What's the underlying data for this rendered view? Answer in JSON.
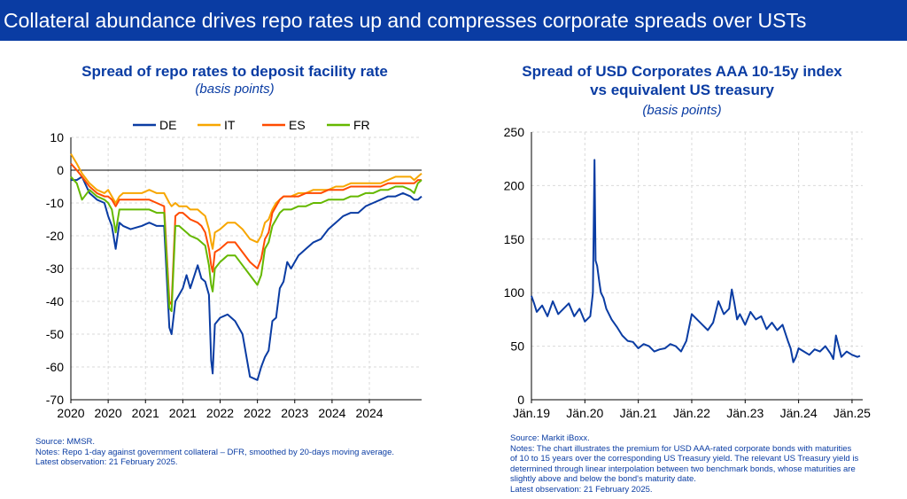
{
  "banner": {
    "title": "Collateral abundance drives repo rates up and compresses corporate spreads over USTs"
  },
  "left_chart": {
    "title": "Spread of repo rates to deposit facility rate",
    "subtitle": "(basis points)",
    "notes": {
      "source": "Source: MMSR.",
      "notes": "Notes: Repo 1-day against government collateral – DFR, smoothed by 20-days moving average.",
      "latest": "Latest observation: 21 February 2025."
    }
  },
  "right_chart": {
    "title_line1": "Spread of USD Corporates AAA 10-15y index",
    "title_line2": "vs equivalent US treasury",
    "subtitle": "(basis points)",
    "notes": {
      "source": "Source: Markit iBoxx.",
      "notes_lines": [
        "Notes: The chart illustrates the premium for USD AAA-rated corporate bonds with maturities",
        "of 10 to 15 years over the corresponding US Treasury yield. The relevant US Treasury yield is",
        "determined through linear interpolation between two benchmark bonds, whose maturities are",
        "slightly above and below the bond's maturity date."
      ],
      "latest": "Latest observation: 21 February 2025."
    }
  },
  "chart_data": [
    {
      "type": "line",
      "title": "Spread of repo rates to deposit facility rate",
      "subtitle": "(basis points)",
      "ylim": [
        -70,
        10
      ],
      "xlim": [
        2020.0,
        2024.7
      ],
      "y_ticks": [
        10,
        0,
        -10,
        -20,
        -30,
        -40,
        -50,
        -60,
        -70
      ],
      "x_ticks": [
        {
          "label": "2020",
          "x": 2020.0
        },
        {
          "label": "2020",
          "x": 2020.5
        },
        {
          "label": "2021",
          "x": 2021.0
        },
        {
          "label": "2021",
          "x": 2021.5
        },
        {
          "label": "2022",
          "x": 2022.0
        },
        {
          "label": "2022",
          "x": 2022.5
        },
        {
          "label": "2023",
          "x": 2023.0
        },
        {
          "label": "2024",
          "x": 2023.5
        },
        {
          "label": "2024",
          "x": 2024.0
        }
      ],
      "grid": true,
      "legend_position": "top",
      "series": [
        {
          "name": "DE",
          "color": "#0a3ca3",
          "x": [
            2020.0,
            2020.08,
            2020.15,
            2020.25,
            2020.35,
            2020.45,
            2020.5,
            2020.55,
            2020.6,
            2020.65,
            2020.7,
            2020.8,
            2020.95,
            2021.05,
            2021.15,
            2021.25,
            2021.32,
            2021.35,
            2021.4,
            2021.45,
            2021.5,
            2021.55,
            2021.6,
            2021.7,
            2021.75,
            2021.8,
            2021.85,
            2021.88,
            2021.9,
            2021.93,
            2022.0,
            2022.1,
            2022.2,
            2022.3,
            2022.4,
            2022.5,
            2022.55,
            2022.6,
            2022.65,
            2022.7,
            2022.75,
            2022.8,
            2022.85,
            2022.9,
            2022.95,
            2023.05,
            2023.15,
            2023.25,
            2023.35,
            2023.45,
            2023.55,
            2023.65,
            2023.75,
            2023.85,
            2023.95,
            2024.05,
            2024.15,
            2024.25,
            2024.35,
            2024.45,
            2024.55,
            2024.6,
            2024.65,
            2024.7
          ],
          "y": [
            -3,
            -3,
            -2,
            -7,
            -9,
            -10,
            -14,
            -17,
            -24,
            -16,
            -17,
            -18,
            -17,
            -16,
            -17,
            -17,
            -48,
            -50,
            -40,
            -38,
            -36,
            -32,
            -36,
            -29,
            -33,
            -34,
            -38,
            -58,
            -62,
            -47,
            -45,
            -44,
            -46,
            -50,
            -63,
            -64,
            -60,
            -57,
            -55,
            -46,
            -45,
            -36,
            -34,
            -28,
            -30,
            -26,
            -24,
            -22,
            -21,
            -18,
            -16,
            -14,
            -13,
            -13,
            -11,
            -10,
            -9,
            -8,
            -8,
            -7,
            -8,
            -9,
            -9,
            -8
          ]
        },
        {
          "name": "IT",
          "color": "#f7a600",
          "x": [
            2020.0,
            2020.08,
            2020.15,
            2020.25,
            2020.35,
            2020.45,
            2020.5,
            2020.55,
            2020.6,
            2020.65,
            2020.7,
            2020.8,
            2020.95,
            2021.05,
            2021.15,
            2021.25,
            2021.32,
            2021.35,
            2021.4,
            2021.45,
            2021.5,
            2021.55,
            2021.6,
            2021.7,
            2021.75,
            2021.8,
            2021.85,
            2021.88,
            2021.9,
            2021.93,
            2022.0,
            2022.1,
            2022.2,
            2022.3,
            2022.4,
            2022.5,
            2022.55,
            2022.6,
            2022.65,
            2022.7,
            2022.75,
            2022.8,
            2022.85,
            2022.9,
            2022.95,
            2023.05,
            2023.15,
            2023.25,
            2023.35,
            2023.45,
            2023.55,
            2023.65,
            2023.75,
            2023.85,
            2023.95,
            2024.05,
            2024.15,
            2024.25,
            2024.35,
            2024.45,
            2024.55,
            2024.6,
            2024.65,
            2024.7
          ],
          "y": [
            5,
            2,
            -1,
            -4,
            -6,
            -7,
            -6,
            -8,
            -10,
            -8,
            -7,
            -7,
            -7,
            -6,
            -7,
            -7,
            -10,
            -11,
            -10,
            -11,
            -11,
            -11,
            -12,
            -12,
            -13,
            -14,
            -18,
            -22,
            -24,
            -19,
            -18,
            -16,
            -16,
            -18,
            -21,
            -22,
            -20,
            -16,
            -15,
            -12,
            -10,
            -9,
            -8,
            -8,
            -8,
            -7,
            -7,
            -6,
            -6,
            -6,
            -5,
            -5,
            -4,
            -4,
            -4,
            -4,
            -4,
            -3,
            -2,
            -2,
            -2,
            -3,
            -2,
            -1
          ]
        },
        {
          "name": "ES",
          "color": "#ff4b00",
          "x": [
            2020.0,
            2020.08,
            2020.15,
            2020.25,
            2020.35,
            2020.45,
            2020.5,
            2020.55,
            2020.6,
            2020.65,
            2020.7,
            2020.8,
            2020.95,
            2021.05,
            2021.15,
            2021.25,
            2021.32,
            2021.35,
            2021.4,
            2021.45,
            2021.5,
            2021.55,
            2021.6,
            2021.7,
            2021.75,
            2021.8,
            2021.85,
            2021.88,
            2021.9,
            2021.93,
            2022.0,
            2022.1,
            2022.2,
            2022.3,
            2022.4,
            2022.5,
            2022.55,
            2022.6,
            2022.65,
            2022.7,
            2022.75,
            2022.8,
            2022.85,
            2022.9,
            2022.95,
            2023.05,
            2023.15,
            2023.25,
            2023.35,
            2023.45,
            2023.55,
            2023.65,
            2023.75,
            2023.85,
            2023.95,
            2024.05,
            2024.15,
            2024.25,
            2024.35,
            2024.45,
            2024.55,
            2024.6,
            2024.65,
            2024.7
          ],
          "y": [
            2,
            0,
            -2,
            -5,
            -7,
            -8,
            -8,
            -9,
            -11,
            -9,
            -9,
            -9,
            -9,
            -9,
            -10,
            -11,
            -40,
            -41,
            -14,
            -13,
            -13,
            -14,
            -15,
            -16,
            -17,
            -19,
            -24,
            -29,
            -31,
            -25,
            -24,
            -22,
            -22,
            -25,
            -28,
            -30,
            -27,
            -21,
            -19,
            -13,
            -11,
            -9,
            -8,
            -8,
            -8,
            -8,
            -7,
            -7,
            -7,
            -6,
            -6,
            -6,
            -5,
            -5,
            -5,
            -5,
            -5,
            -4,
            -4,
            -4,
            -4,
            -4,
            -3,
            -3
          ]
        },
        {
          "name": "FR",
          "color": "#65b800",
          "x": [
            2020.0,
            2020.08,
            2020.15,
            2020.25,
            2020.35,
            2020.45,
            2020.5,
            2020.55,
            2020.6,
            2020.65,
            2020.7,
            2020.8,
            2020.95,
            2021.05,
            2021.15,
            2021.25,
            2021.32,
            2021.35,
            2021.4,
            2021.45,
            2021.5,
            2021.55,
            2021.6,
            2021.7,
            2021.75,
            2021.8,
            2021.85,
            2021.88,
            2021.9,
            2021.93,
            2022.0,
            2022.1,
            2022.2,
            2022.3,
            2022.4,
            2022.5,
            2022.55,
            2022.6,
            2022.65,
            2022.7,
            2022.75,
            2022.8,
            2022.85,
            2022.9,
            2022.95,
            2023.05,
            2023.15,
            2023.25,
            2023.35,
            2023.45,
            2023.55,
            2023.65,
            2023.75,
            2023.85,
            2023.95,
            2024.05,
            2024.15,
            2024.25,
            2024.35,
            2024.45,
            2024.55,
            2024.6,
            2024.65,
            2024.7
          ],
          "y": [
            -2,
            -4,
            -9,
            -6,
            -8,
            -9,
            -10,
            -12,
            -19,
            -12,
            -12,
            -12,
            -12,
            -12,
            -13,
            -13,
            -42,
            -43,
            -17,
            -17,
            -18,
            -19,
            -20,
            -21,
            -22,
            -23,
            -29,
            -35,
            -37,
            -30,
            -28,
            -26,
            -26,
            -29,
            -32,
            -35,
            -32,
            -24,
            -22,
            -17,
            -15,
            -13,
            -12,
            -12,
            -12,
            -11,
            -11,
            -10,
            -10,
            -9,
            -9,
            -9,
            -8,
            -8,
            -7,
            -7,
            -6,
            -6,
            -5,
            -5,
            -6,
            -7,
            -4,
            -3
          ]
        }
      ]
    },
    {
      "type": "line",
      "title": "Spread of USD Corporates AAA 10-15y index vs equivalent US treasury",
      "subtitle": "(basis points)",
      "ylim": [
        0,
        250
      ],
      "y_ticks": [
        0,
        50,
        100,
        150,
        200,
        250
      ],
      "xlim": [
        2019.0,
        2025.2
      ],
      "x_ticks": [
        {
          "label": "Jän.19",
          "x": 2019.0
        },
        {
          "label": "Jän.20",
          "x": 2020.0
        },
        {
          "label": "Jän.21",
          "x": 2021.0
        },
        {
          "label": "Jän.22",
          "x": 2022.0
        },
        {
          "label": "Jän.23",
          "x": 2023.0
        },
        {
          "label": "Jän.24",
          "x": 2024.0
        },
        {
          "label": "Jän.25",
          "x": 2025.0
        }
      ],
      "grid": true,
      "series": [
        {
          "color": "#0a3ca3",
          "x": [
            2019.0,
            2019.05,
            2019.1,
            2019.2,
            2019.3,
            2019.4,
            2019.5,
            2019.6,
            2019.7,
            2019.8,
            2019.9,
            2020.0,
            2020.1,
            2020.15,
            2020.18,
            2020.2,
            2020.23,
            2020.27,
            2020.3,
            2020.35,
            2020.4,
            2020.5,
            2020.6,
            2020.7,
            2020.8,
            2020.9,
            2021.0,
            2021.1,
            2021.2,
            2021.3,
            2021.4,
            2021.5,
            2021.6,
            2021.7,
            2021.8,
            2021.9,
            2022.0,
            2022.1,
            2022.2,
            2022.3,
            2022.4,
            2022.5,
            2022.6,
            2022.7,
            2022.75,
            2022.8,
            2022.85,
            2022.9,
            2023.0,
            2023.1,
            2023.2,
            2023.3,
            2023.4,
            2023.5,
            2023.6,
            2023.7,
            2023.8,
            2023.85,
            2023.9,
            2023.95,
            2024.0,
            2024.1,
            2024.2,
            2024.3,
            2024.4,
            2024.5,
            2024.6,
            2024.65,
            2024.7,
            2024.8,
            2024.9,
            2025.0,
            2025.1,
            2025.15
          ],
          "y": [
            97,
            90,
            82,
            88,
            78,
            92,
            80,
            85,
            90,
            78,
            85,
            73,
            78,
            100,
            224,
            130,
            125,
            110,
            100,
            95,
            85,
            75,
            68,
            60,
            55,
            54,
            48,
            52,
            50,
            45,
            47,
            48,
            52,
            50,
            45,
            55,
            80,
            75,
            70,
            65,
            72,
            92,
            80,
            85,
            103,
            90,
            75,
            80,
            70,
            82,
            75,
            78,
            66,
            72,
            65,
            70,
            55,
            48,
            35,
            40,
            48,
            45,
            42,
            47,
            45,
            50,
            43,
            38,
            60,
            40,
            45,
            42,
            40,
            41
          ]
        }
      ]
    }
  ]
}
